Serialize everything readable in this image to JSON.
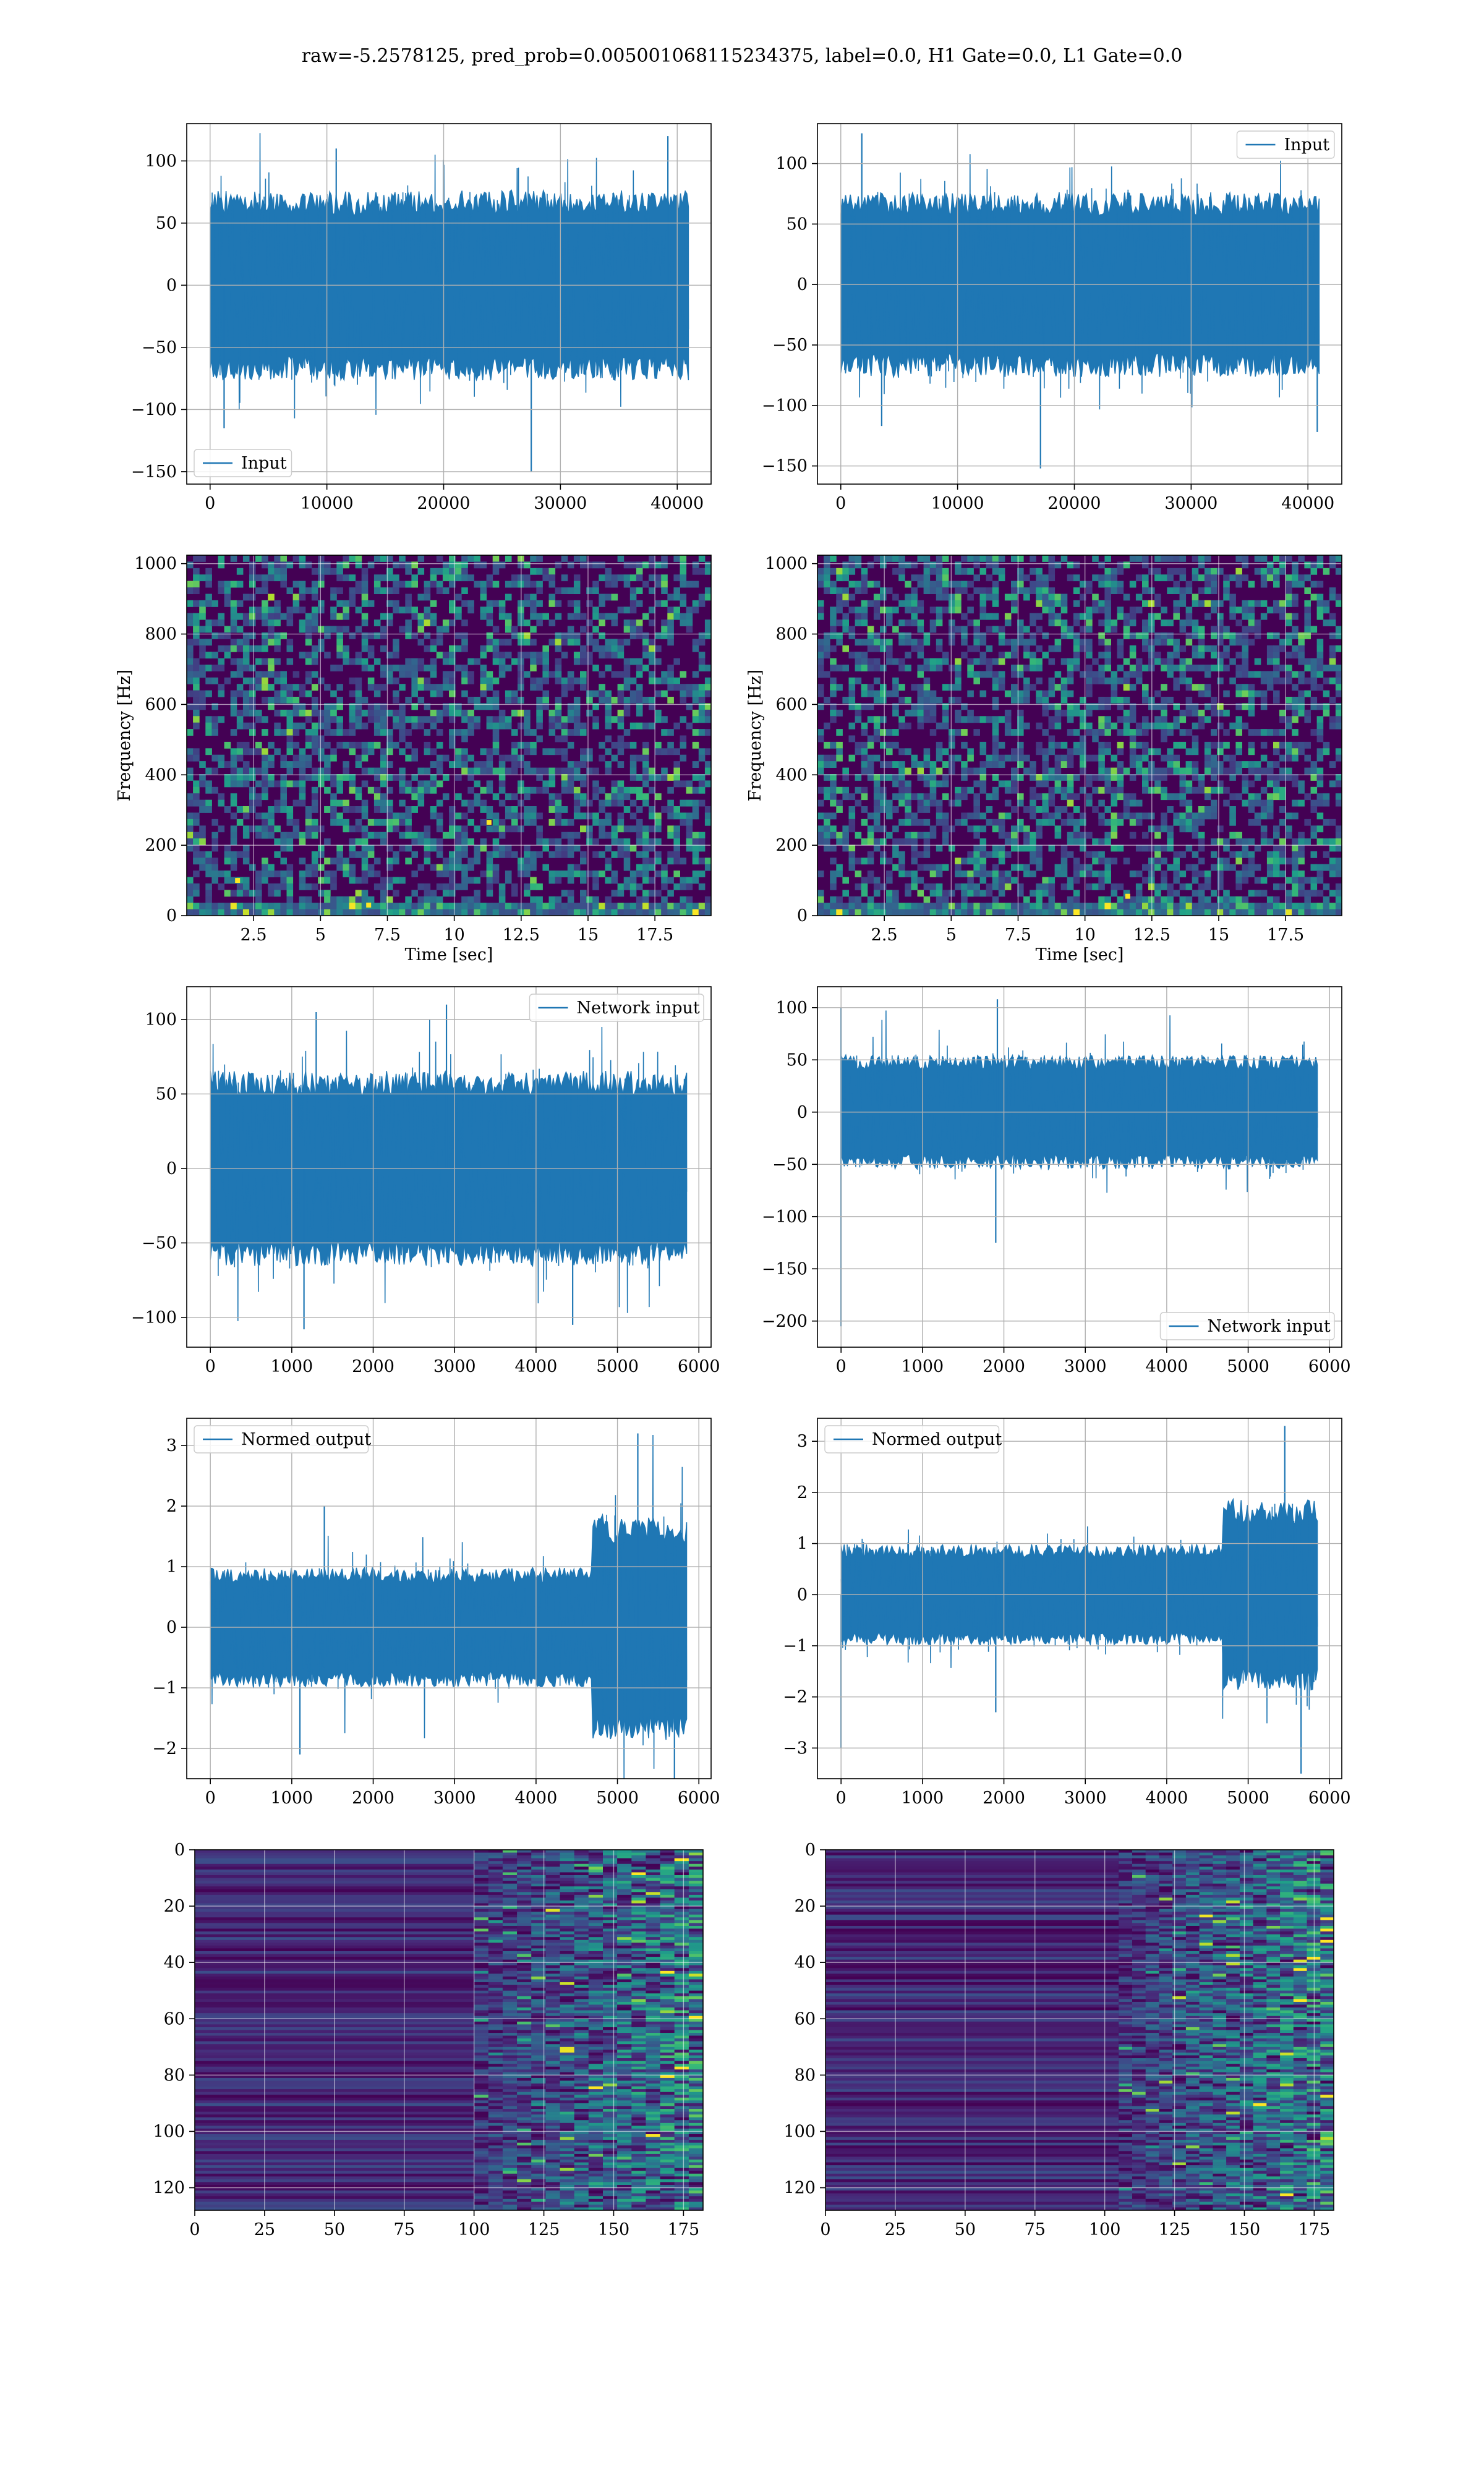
{
  "figure": {
    "suptitle": "raw=-5.2578125, pred_prob=0.005001068115234375, label=0.0, H1 Gate=0.0, L1 Gate=0.0"
  },
  "colors": {
    "series": "#1f77b4",
    "grid": "#b0b0b0",
    "viridis_dark": "#440154",
    "viridis_mid": "#21918c",
    "viridis_light": "#5ec962",
    "viridis_bright": "#fde725"
  },
  "chart_data": [
    {
      "id": "h1-input",
      "type": "line",
      "series_name": "Input",
      "legend": "lower-left",
      "xlim": [
        -2000,
        42900
      ],
      "ylim": [
        -160,
        130
      ],
      "xticks": [
        0,
        10000,
        20000,
        30000,
        40000
      ],
      "yticks": [
        -150,
        -100,
        -50,
        0,
        50,
        100
      ],
      "x_range": [
        0,
        40960
      ],
      "noise_band": [
        -70,
        70
      ],
      "envelope": "flat",
      "notable_values": [
        {
          "x": 27500,
          "y": -150
        },
        {
          "x": 39200,
          "y": 120
        },
        {
          "x": 1200,
          "y": -115
        },
        {
          "x": 10800,
          "y": 110
        }
      ]
    },
    {
      "id": "l1-input",
      "type": "line",
      "series_name": "Input",
      "legend": "upper-right",
      "xlim": [
        -2000,
        42900
      ],
      "ylim": [
        -165,
        133
      ],
      "xticks": [
        0,
        10000,
        20000,
        30000,
        40000
      ],
      "yticks": [
        -150,
        -100,
        -50,
        0,
        50,
        100
      ],
      "x_range": [
        0,
        40960
      ],
      "noise_band": [
        -70,
        70
      ],
      "envelope": "flat",
      "notable_values": [
        {
          "x": 17100,
          "y": -152
        },
        {
          "x": 1800,
          "y": 125
        },
        {
          "x": 40800,
          "y": -122
        },
        {
          "x": 3500,
          "y": -117
        }
      ]
    },
    {
      "id": "h1-spectrogram",
      "type": "heatmap",
      "xlim": [
        0,
        19.6
      ],
      "ylim": [
        0,
        1024
      ],
      "xticks": [
        2.5,
        5.0,
        7.5,
        10.0,
        12.5,
        15.0,
        17.5
      ],
      "yticks": [
        0,
        200,
        400,
        600,
        800,
        1000
      ],
      "xlabel": "Time [sec]",
      "ylabel": "Frequency [Hz]",
      "hot_spots": [
        {
          "x": 1.9,
          "y": 100
        },
        {
          "x": 6.8,
          "y": 30
        },
        {
          "x": 11.3,
          "y": 265
        }
      ]
    },
    {
      "id": "l1-spectrogram",
      "type": "heatmap",
      "xlim": [
        0,
        19.6
      ],
      "ylim": [
        0,
        1024
      ],
      "xticks": [
        2.5,
        5.0,
        7.5,
        10.0,
        12.5,
        15.0,
        17.5
      ],
      "yticks": [
        0,
        200,
        400,
        600,
        800,
        1000
      ],
      "xlabel": "Time [sec]",
      "ylabel": "Frequency [Hz]",
      "hot_spots": [
        {
          "x": 11.6,
          "y": 55
        }
      ]
    },
    {
      "id": "h1-network-input",
      "type": "line",
      "series_name": "Network input",
      "legend": "upper-right",
      "xlim": [
        -290,
        6150
      ],
      "ylim": [
        -120,
        122
      ],
      "xticks": [
        0,
        1000,
        2000,
        3000,
        4000,
        5000,
        6000
      ],
      "yticks": [
        -100,
        -50,
        0,
        50,
        100
      ],
      "x_range": [
        0,
        5850
      ],
      "noise_band": [
        -60,
        60
      ],
      "envelope": "flat",
      "notable_values": [
        {
          "x": 1150,
          "y": -108
        },
        {
          "x": 4450,
          "y": -105
        },
        {
          "x": 2900,
          "y": 110
        },
        {
          "x": 1300,
          "y": 105
        }
      ]
    },
    {
      "id": "l1-network-input",
      "type": "line",
      "series_name": "Network input",
      "legend": "lower-right",
      "xlim": [
        -290,
        6150
      ],
      "ylim": [
        -225,
        120
      ],
      "xticks": [
        0,
        1000,
        2000,
        3000,
        4000,
        5000,
        6000
      ],
      "yticks": [
        -200,
        -150,
        -100,
        -50,
        0,
        50,
        100
      ],
      "x_range": [
        0,
        5850
      ],
      "noise_band": [
        -50,
        50
      ],
      "envelope": "flat",
      "notable_values": [
        {
          "x": 0,
          "y": -205
        },
        {
          "x": 1900,
          "y": -125
        },
        {
          "x": 1920,
          "y": 108
        },
        {
          "x": 0,
          "y": 100
        }
      ]
    },
    {
      "id": "h1-normed-output",
      "type": "line",
      "series_name": "Normed output",
      "legend": "upper-left",
      "xlim": [
        -290,
        6150
      ],
      "ylim": [
        -2.5,
        3.45
      ],
      "xticks": [
        0,
        1000,
        2000,
        3000,
        4000,
        5000,
        6000
      ],
      "yticks": [
        -2,
        -1,
        0,
        1,
        2,
        3
      ],
      "x_range": [
        0,
        5850
      ],
      "noise_band": [
        -0.9,
        0.9
      ],
      "envelope": "late-burst",
      "notable_values": [
        {
          "x": 5250,
          "y": 3.2
        },
        {
          "x": 1100,
          "y": -2.1
        },
        {
          "x": 5700,
          "y": -2.5
        },
        {
          "x": 1400,
          "y": 2.0
        }
      ]
    },
    {
      "id": "l1-normed-output",
      "type": "line",
      "series_name": "Normed output",
      "legend": "upper-left",
      "xlim": [
        -290,
        6150
      ],
      "ylim": [
        -3.6,
        3.45
      ],
      "xticks": [
        0,
        1000,
        2000,
        3000,
        4000,
        5000,
        6000
      ],
      "yticks": [
        -3,
        -2,
        -1,
        0,
        1,
        2,
        3
      ],
      "x_range": [
        0,
        5850
      ],
      "noise_band": [
        -0.9,
        0.9
      ],
      "envelope": "late-burst",
      "notable_values": [
        {
          "x": 5450,
          "y": 3.3
        },
        {
          "x": 5650,
          "y": -3.5
        },
        {
          "x": 0,
          "y": -3.0
        },
        {
          "x": 1900,
          "y": -2.3
        }
      ]
    },
    {
      "id": "h1-output-map",
      "type": "heatmap",
      "xlim": [
        0,
        182
      ],
      "ylim": [
        128,
        0
      ],
      "xticks": [
        0,
        25,
        50,
        75,
        100,
        125,
        150,
        175
      ],
      "yticks": [
        0,
        20,
        40,
        60,
        80,
        100,
        120
      ],
      "activity_onset_x": 100
    },
    {
      "id": "l1-output-map",
      "type": "heatmap",
      "xlim": [
        0,
        182
      ],
      "ylim": [
        128,
        0
      ],
      "xticks": [
        0,
        25,
        50,
        75,
        100,
        125,
        150,
        175
      ],
      "yticks": [
        0,
        20,
        40,
        60,
        80,
        100,
        120
      ],
      "activity_onset_x": 105
    }
  ]
}
